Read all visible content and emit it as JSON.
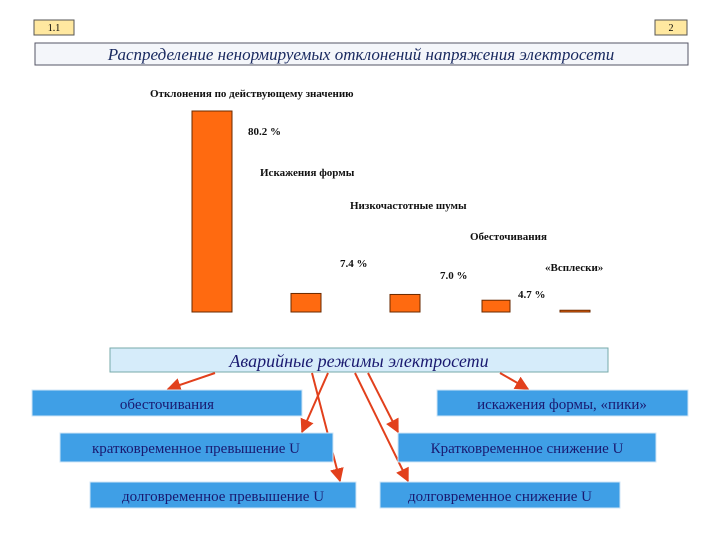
{
  "header": {
    "slide_number": "1.1",
    "page_number": "2",
    "title": "Распределение ненормируемых отклонений напряжения электросети"
  },
  "chart_data": {
    "type": "bar",
    "categories": [
      "Отклонения по действующему значению",
      "Искажения формы",
      "Низкочастотные шумы",
      "Обесточивания",
      "«Всплески»"
    ],
    "values": [
      80.2,
      7.4,
      7.0,
      4.7,
      0.7
    ],
    "value_labels": [
      "80.2 %",
      "7.4 %",
      "7.0 %",
      "4.7 %",
      null
    ],
    "color": "#ff6a10"
  },
  "diagram": {
    "root": "Аварийные режимы электросети",
    "nodes": [
      "обесточивания",
      "искажения формы, «пики»",
      "кратковременное превышение U",
      "Кратковременное снижение U",
      "долговременное превышение U",
      "долговременное снижение U"
    ]
  }
}
